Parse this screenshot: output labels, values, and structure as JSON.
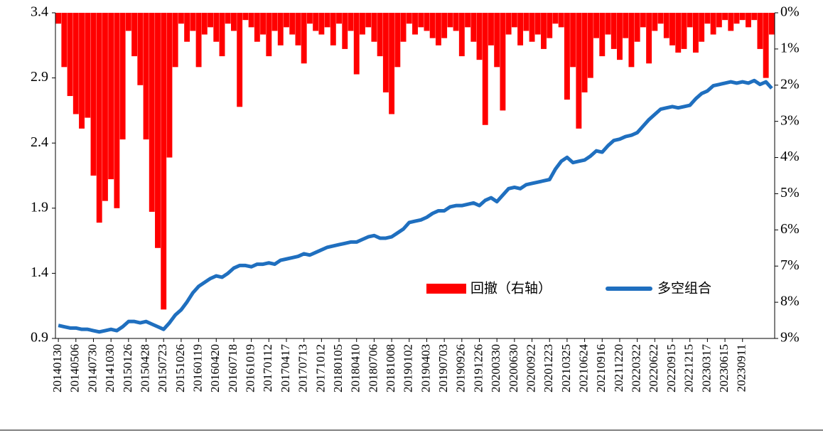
{
  "chart_data": {
    "type": "bar-line",
    "categories": [
      "20140130",
      null,
      null,
      "20140506",
      null,
      null,
      "20140730",
      null,
      null,
      "20141030",
      null,
      null,
      "20150126",
      null,
      null,
      "20150428",
      null,
      null,
      "20150723",
      null,
      null,
      "20151026",
      null,
      null,
      "20160119",
      null,
      null,
      "20160420",
      null,
      null,
      "20160718",
      null,
      null,
      "20161019",
      null,
      null,
      "20170112",
      null,
      null,
      "20170417",
      null,
      null,
      "20170713",
      null,
      null,
      "20171012",
      null,
      null,
      "20180105",
      null,
      null,
      "20180410",
      null,
      null,
      "20180706",
      null,
      null,
      "20181008",
      null,
      null,
      "20190102",
      null,
      null,
      "20190403",
      null,
      null,
      "20190703",
      null,
      null,
      "20190926",
      null,
      null,
      "20191226",
      null,
      null,
      "20200330",
      null,
      null,
      "20200630",
      null,
      null,
      "20200922",
      null,
      null,
      "20201223",
      null,
      null,
      "20210325",
      null,
      null,
      "20210624",
      null,
      null,
      "20210916",
      null,
      null,
      "20211220",
      null,
      null,
      "20220322",
      null,
      null,
      "20220622",
      null,
      null,
      "20220915",
      null,
      null,
      "20221215",
      null,
      null,
      "20230317",
      null,
      null,
      "20230615",
      null,
      null,
      "20230911",
      null,
      null,
      null,
      null,
      null
    ],
    "series": [
      {
        "name": "回撤（右轴）",
        "color": "#ff0000",
        "axis": "y2",
        "kind": "bar",
        "values": [
          0.3,
          1.5,
          2.3,
          2.8,
          3.2,
          2.9,
          4.5,
          5.8,
          5.2,
          4.6,
          5.4,
          3.5,
          0.5,
          1.2,
          2.0,
          3.5,
          5.5,
          6.5,
          8.2,
          4.0,
          1.5,
          0.3,
          0.8,
          0.5,
          1.5,
          0.6,
          0.4,
          0.8,
          1.2,
          0.3,
          0.5,
          2.6,
          0.2,
          0.4,
          0.8,
          0.6,
          1.2,
          0.5,
          0.9,
          0.4,
          0.6,
          0.9,
          1.4,
          0.3,
          0.5,
          0.6,
          0.4,
          0.9,
          0.3,
          1.0,
          0.5,
          1.7,
          0.6,
          0.4,
          0.8,
          1.2,
          2.2,
          2.8,
          1.5,
          0.8,
          0.3,
          0.6,
          0.4,
          0.5,
          0.7,
          0.9,
          0.7,
          0.4,
          0.5,
          1.2,
          0.4,
          0.8,
          1.3,
          3.1,
          0.9,
          1.5,
          2.7,
          0.6,
          0.4,
          0.9,
          0.5,
          0.8,
          0.6,
          1.0,
          0.7,
          0.3,
          0.4,
          2.4,
          1.5,
          3.2,
          2.2,
          1.8,
          0.7,
          1.2,
          0.6,
          1.0,
          1.3,
          0.7,
          1.5,
          0.8,
          0.4,
          1.4,
          0.5,
          0.3,
          0.7,
          0.9,
          1.1,
          1.0,
          0.4,
          1.1,
          0.8,
          0.3,
          0.6,
          0.4,
          0.2,
          0.5,
          0.3,
          0.2,
          0.4,
          0.2,
          1.0,
          1.8,
          0.6
        ]
      },
      {
        "name": "多空组合",
        "color": "#1f6fbf",
        "axis": "y",
        "kind": "line",
        "values": [
          1.0,
          0.99,
          0.98,
          0.98,
          0.97,
          0.97,
          0.96,
          0.95,
          0.96,
          0.97,
          0.96,
          0.99,
          1.03,
          1.03,
          1.02,
          1.03,
          1.01,
          0.99,
          0.97,
          1.02,
          1.08,
          1.12,
          1.18,
          1.25,
          1.3,
          1.33,
          1.36,
          1.38,
          1.37,
          1.4,
          1.44,
          1.46,
          1.46,
          1.45,
          1.47,
          1.47,
          1.48,
          1.47,
          1.5,
          1.51,
          1.52,
          1.53,
          1.55,
          1.54,
          1.56,
          1.58,
          1.6,
          1.61,
          1.62,
          1.63,
          1.64,
          1.64,
          1.66,
          1.68,
          1.69,
          1.67,
          1.67,
          1.68,
          1.71,
          1.74,
          1.79,
          1.8,
          1.81,
          1.83,
          1.86,
          1.88,
          1.88,
          1.91,
          1.92,
          1.92,
          1.93,
          1.94,
          1.92,
          1.96,
          1.98,
          1.95,
          2.0,
          2.05,
          2.06,
          2.05,
          2.08,
          2.09,
          2.1,
          2.11,
          2.12,
          2.2,
          2.26,
          2.29,
          2.25,
          2.26,
          2.27,
          2.3,
          2.34,
          2.33,
          2.38,
          2.42,
          2.43,
          2.45,
          2.46,
          2.48,
          2.53,
          2.58,
          2.62,
          2.66,
          2.67,
          2.68,
          2.67,
          2.68,
          2.69,
          2.74,
          2.78,
          2.8,
          2.84,
          2.85,
          2.86,
          2.87,
          2.86,
          2.87,
          2.86,
          2.88,
          2.85,
          2.87,
          2.82
        ]
      }
    ],
    "ylim": [
      0.9,
      3.4
    ],
    "yticks": [
      0.9,
      1.4,
      1.9,
      2.4,
      2.9,
      3.4
    ],
    "y2lim": [
      0,
      9
    ],
    "y2_inverted": true,
    "y2ticks": [
      {
        "value": 0,
        "label": "0%"
      },
      {
        "value": 1,
        "label": "1%"
      },
      {
        "value": 2,
        "label": "2%"
      },
      {
        "value": 3,
        "label": "3%"
      },
      {
        "value": 4,
        "label": "4%"
      },
      {
        "value": 5,
        "label": "5%"
      },
      {
        "value": 6,
        "label": "6%"
      },
      {
        "value": 7,
        "label": "7%"
      },
      {
        "value": 8,
        "label": "8%"
      },
      {
        "value": 9,
        "label": "9%"
      }
    ],
    "legend": "inside-lower-right"
  }
}
